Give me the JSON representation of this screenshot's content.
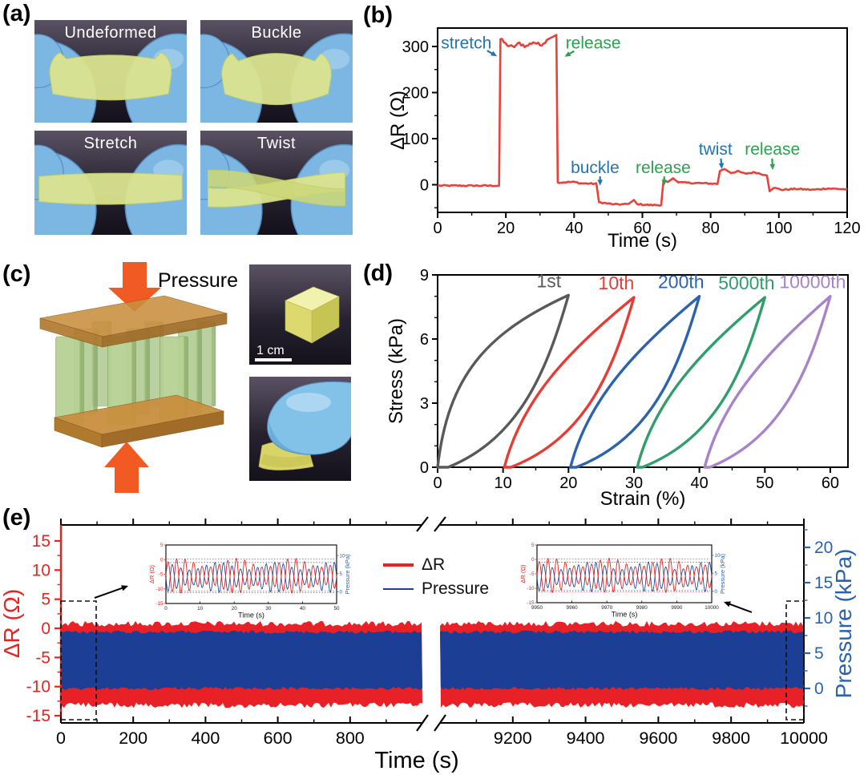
{
  "panels": {
    "a": "(a)",
    "b": "(b)",
    "c": "(c)",
    "d": "(d)",
    "e": "(e)"
  },
  "panel_a": {
    "photos": [
      {
        "label": "Undeformed",
        "variant": "undeformed"
      },
      {
        "label": "Buckle",
        "variant": "buckle"
      },
      {
        "label": "Stretch",
        "variant": "stretch"
      },
      {
        "label": "Twist",
        "variant": "twist"
      }
    ]
  },
  "panel_c": {
    "pressure_label": "Pressure",
    "scale_bar": "1 cm",
    "arrow_color": "#f15a22",
    "plate_color": "#c08038",
    "pillar_color": "#b7d194"
  },
  "chart_data": [
    {
      "id": "b",
      "type": "line",
      "xlabel": "Time (s)",
      "ylabel": "ΔR (Ω)",
      "xlim": [
        0,
        120
      ],
      "ylim": [
        -60,
        340
      ],
      "x_ticks": [
        0,
        20,
        40,
        60,
        80,
        100,
        120
      ],
      "y_ticks": [
        0,
        100,
        200,
        300
      ],
      "grid": false,
      "series": [
        {
          "name": "ΔR",
          "color": "#e8413c",
          "points": [
            [
              0,
              -2
            ],
            [
              18,
              -2
            ],
            [
              18.4,
              316
            ],
            [
              20,
              305
            ],
            [
              22,
              298
            ],
            [
              24,
              307
            ],
            [
              26,
              300
            ],
            [
              28,
              310
            ],
            [
              30,
              303
            ],
            [
              32,
              313
            ],
            [
              33.5,
              320
            ],
            [
              34.8,
              325
            ],
            [
              35.2,
              5
            ],
            [
              40,
              6
            ],
            [
              42,
              3
            ],
            [
              46.8,
              2
            ],
            [
              47.3,
              -38
            ],
            [
              52,
              -43
            ],
            [
              56,
              -42
            ],
            [
              57.5,
              -33
            ],
            [
              58.5,
              -42
            ],
            [
              62,
              -44
            ],
            [
              65.8,
              -44
            ],
            [
              66.2,
              10
            ],
            [
              67.5,
              6
            ],
            [
              69,
              14
            ],
            [
              70.5,
              5
            ],
            [
              74,
              4
            ],
            [
              78,
              3
            ],
            [
              82.2,
              2
            ],
            [
              82.7,
              30
            ],
            [
              84,
              34
            ],
            [
              86,
              26
            ],
            [
              88,
              29
            ],
            [
              90,
              24
            ],
            [
              93,
              27
            ],
            [
              95,
              23
            ],
            [
              96.8,
              21
            ],
            [
              97.3,
              -14
            ],
            [
              98.5,
              -7
            ],
            [
              101,
              -11
            ],
            [
              105,
              -9
            ],
            [
              110,
              -11
            ],
            [
              114,
              -8
            ],
            [
              120,
              -10
            ]
          ]
        }
      ],
      "annotations": [
        {
          "text": "stretch",
          "color": "#2474b5",
          "text_x": 1,
          "text_y": 296,
          "arrow": [
            14.5,
            291,
            17.4,
            279
          ]
        },
        {
          "text": "release",
          "color": "#2aa34f",
          "text_x": 37.5,
          "text_y": 296,
          "arrow": [
            40,
            290,
            37.2,
            278
          ]
        },
        {
          "text": "buckle",
          "color": "#2474b5",
          "text_x": 39,
          "text_y": 25,
          "arrow": [
            47.6,
            18,
            47.6,
            -2
          ]
        },
        {
          "text": "release",
          "color": "#2aa34f",
          "text_x": 58,
          "text_y": 25,
          "arrow": [
            66.4,
            18,
            66.4,
            -2
          ]
        },
        {
          "text": "twist",
          "color": "#2474b5",
          "text_x": 76.5,
          "text_y": 65,
          "arrow": [
            83,
            57,
            83.3,
            34
          ]
        },
        {
          "text": "release",
          "color": "#2aa34f",
          "text_x": 90,
          "text_y": 65,
          "arrow": [
            98,
            57,
            98.2,
            32
          ]
        }
      ]
    },
    {
      "id": "d",
      "type": "hysteresis-loops",
      "xlabel": "Strain (%)",
      "ylabel": "Stress (kPa)",
      "xlim": [
        0,
        62.7
      ],
      "ylim": [
        0,
        9
      ],
      "x_ticks": [
        0,
        10,
        20,
        30,
        40,
        50,
        60
      ],
      "y_ticks": [
        0,
        3,
        6,
        9
      ],
      "series": [
        {
          "name": "1st",
          "color": "#59595c",
          "strain_start": 0,
          "strain_peak": 20,
          "peak_stress": 8.05,
          "residual_strain": 1.6,
          "label_x": 17,
          "bulge": 1
        },
        {
          "name": "10th",
          "color": "#e63c35",
          "strain_start": 10.2,
          "strain_peak": 30,
          "peak_stress": 7.95,
          "residual_strain": 11.2,
          "label_x": 27.3,
          "bulge": 0
        },
        {
          "name": "200th",
          "color": "#2b63ae",
          "strain_start": 20.3,
          "strain_peak": 40,
          "peak_stress": 8.0,
          "residual_strain": 21.2,
          "label_x": 37.2,
          "bulge": 0
        },
        {
          "name": "5000th",
          "color": "#2f9e6a",
          "strain_start": 30.5,
          "strain_peak": 50,
          "peak_stress": 7.95,
          "residual_strain": 31.3,
          "label_x": 47.2,
          "bulge": 0
        },
        {
          "name": "10000th",
          "color": "#a883c9",
          "strain_start": 40.8,
          "strain_peak": 60,
          "peak_stress": 8.0,
          "residual_strain": 41.6,
          "label_x": 57.3,
          "bulge": 0
        }
      ]
    },
    {
      "id": "e",
      "type": "cyclic-band-broken-axis",
      "xlabel": "Time (s)",
      "ylabel_left": "ΔR (Ω)",
      "ylabel_right": "Pressure (kPa)",
      "x_segments": [
        {
          "xlim": [
            0,
            1000
          ],
          "ticks": [
            0,
            200,
            400,
            600,
            800
          ]
        },
        {
          "xlim": [
            9000,
            10000
          ],
          "ticks": [
            9200,
            9400,
            9600,
            9800,
            10000
          ]
        }
      ],
      "ylim_left": [
        -16.2,
        18
      ],
      "left_ticks": [
        15,
        10,
        5,
        0,
        -5,
        -10,
        -15
      ],
      "ylim_right": [
        -4.4,
        23.6
      ],
      "right_ticks": [
        20,
        15,
        10,
        5,
        0
      ],
      "dR_band": [
        -13.2,
        0.8
      ],
      "pressure_band": [
        0,
        8
      ],
      "left_axis_color": "#e8231f",
      "right_axis_color": "#2b62ae",
      "band_blue": "#1d3e95",
      "legend": [
        {
          "name": "ΔR",
          "color": "#e8231f"
        },
        {
          "name": "Pressure",
          "color": "#1d3e95"
        }
      ]
    },
    {
      "id": "e-inset-left",
      "type": "line",
      "xlabel": "Time (s)",
      "ylabel_left": "ΔR (Ω)",
      "ylabel_right": "Pressure (kPa)",
      "xlim": [
        0,
        50
      ],
      "x_ticks": [
        0,
        10,
        20,
        30,
        40,
        50
      ],
      "left_ticks": [
        5,
        0,
        -5,
        -10,
        -15
      ],
      "right_ticks": [
        10,
        5,
        0
      ],
      "dR_range": [
        -11.5,
        0.5
      ],
      "pressure_range": [
        0,
        8
      ]
    },
    {
      "id": "e-inset-right",
      "type": "line",
      "xlabel": "Time (s)",
      "ylabel_left": "ΔR (Ω)",
      "ylabel_right": "Pressure (kPa)",
      "xlim": [
        9950,
        10000
      ],
      "x_ticks": [
        9950,
        9960,
        9970,
        9980,
        9990,
        10000
      ],
      "left_ticks": [
        5,
        0,
        -5,
        -10,
        -15
      ],
      "right_ticks": [
        10,
        5,
        0
      ],
      "dR_range": [
        -11.5,
        0.5
      ],
      "pressure_range": [
        0,
        8
      ]
    }
  ]
}
